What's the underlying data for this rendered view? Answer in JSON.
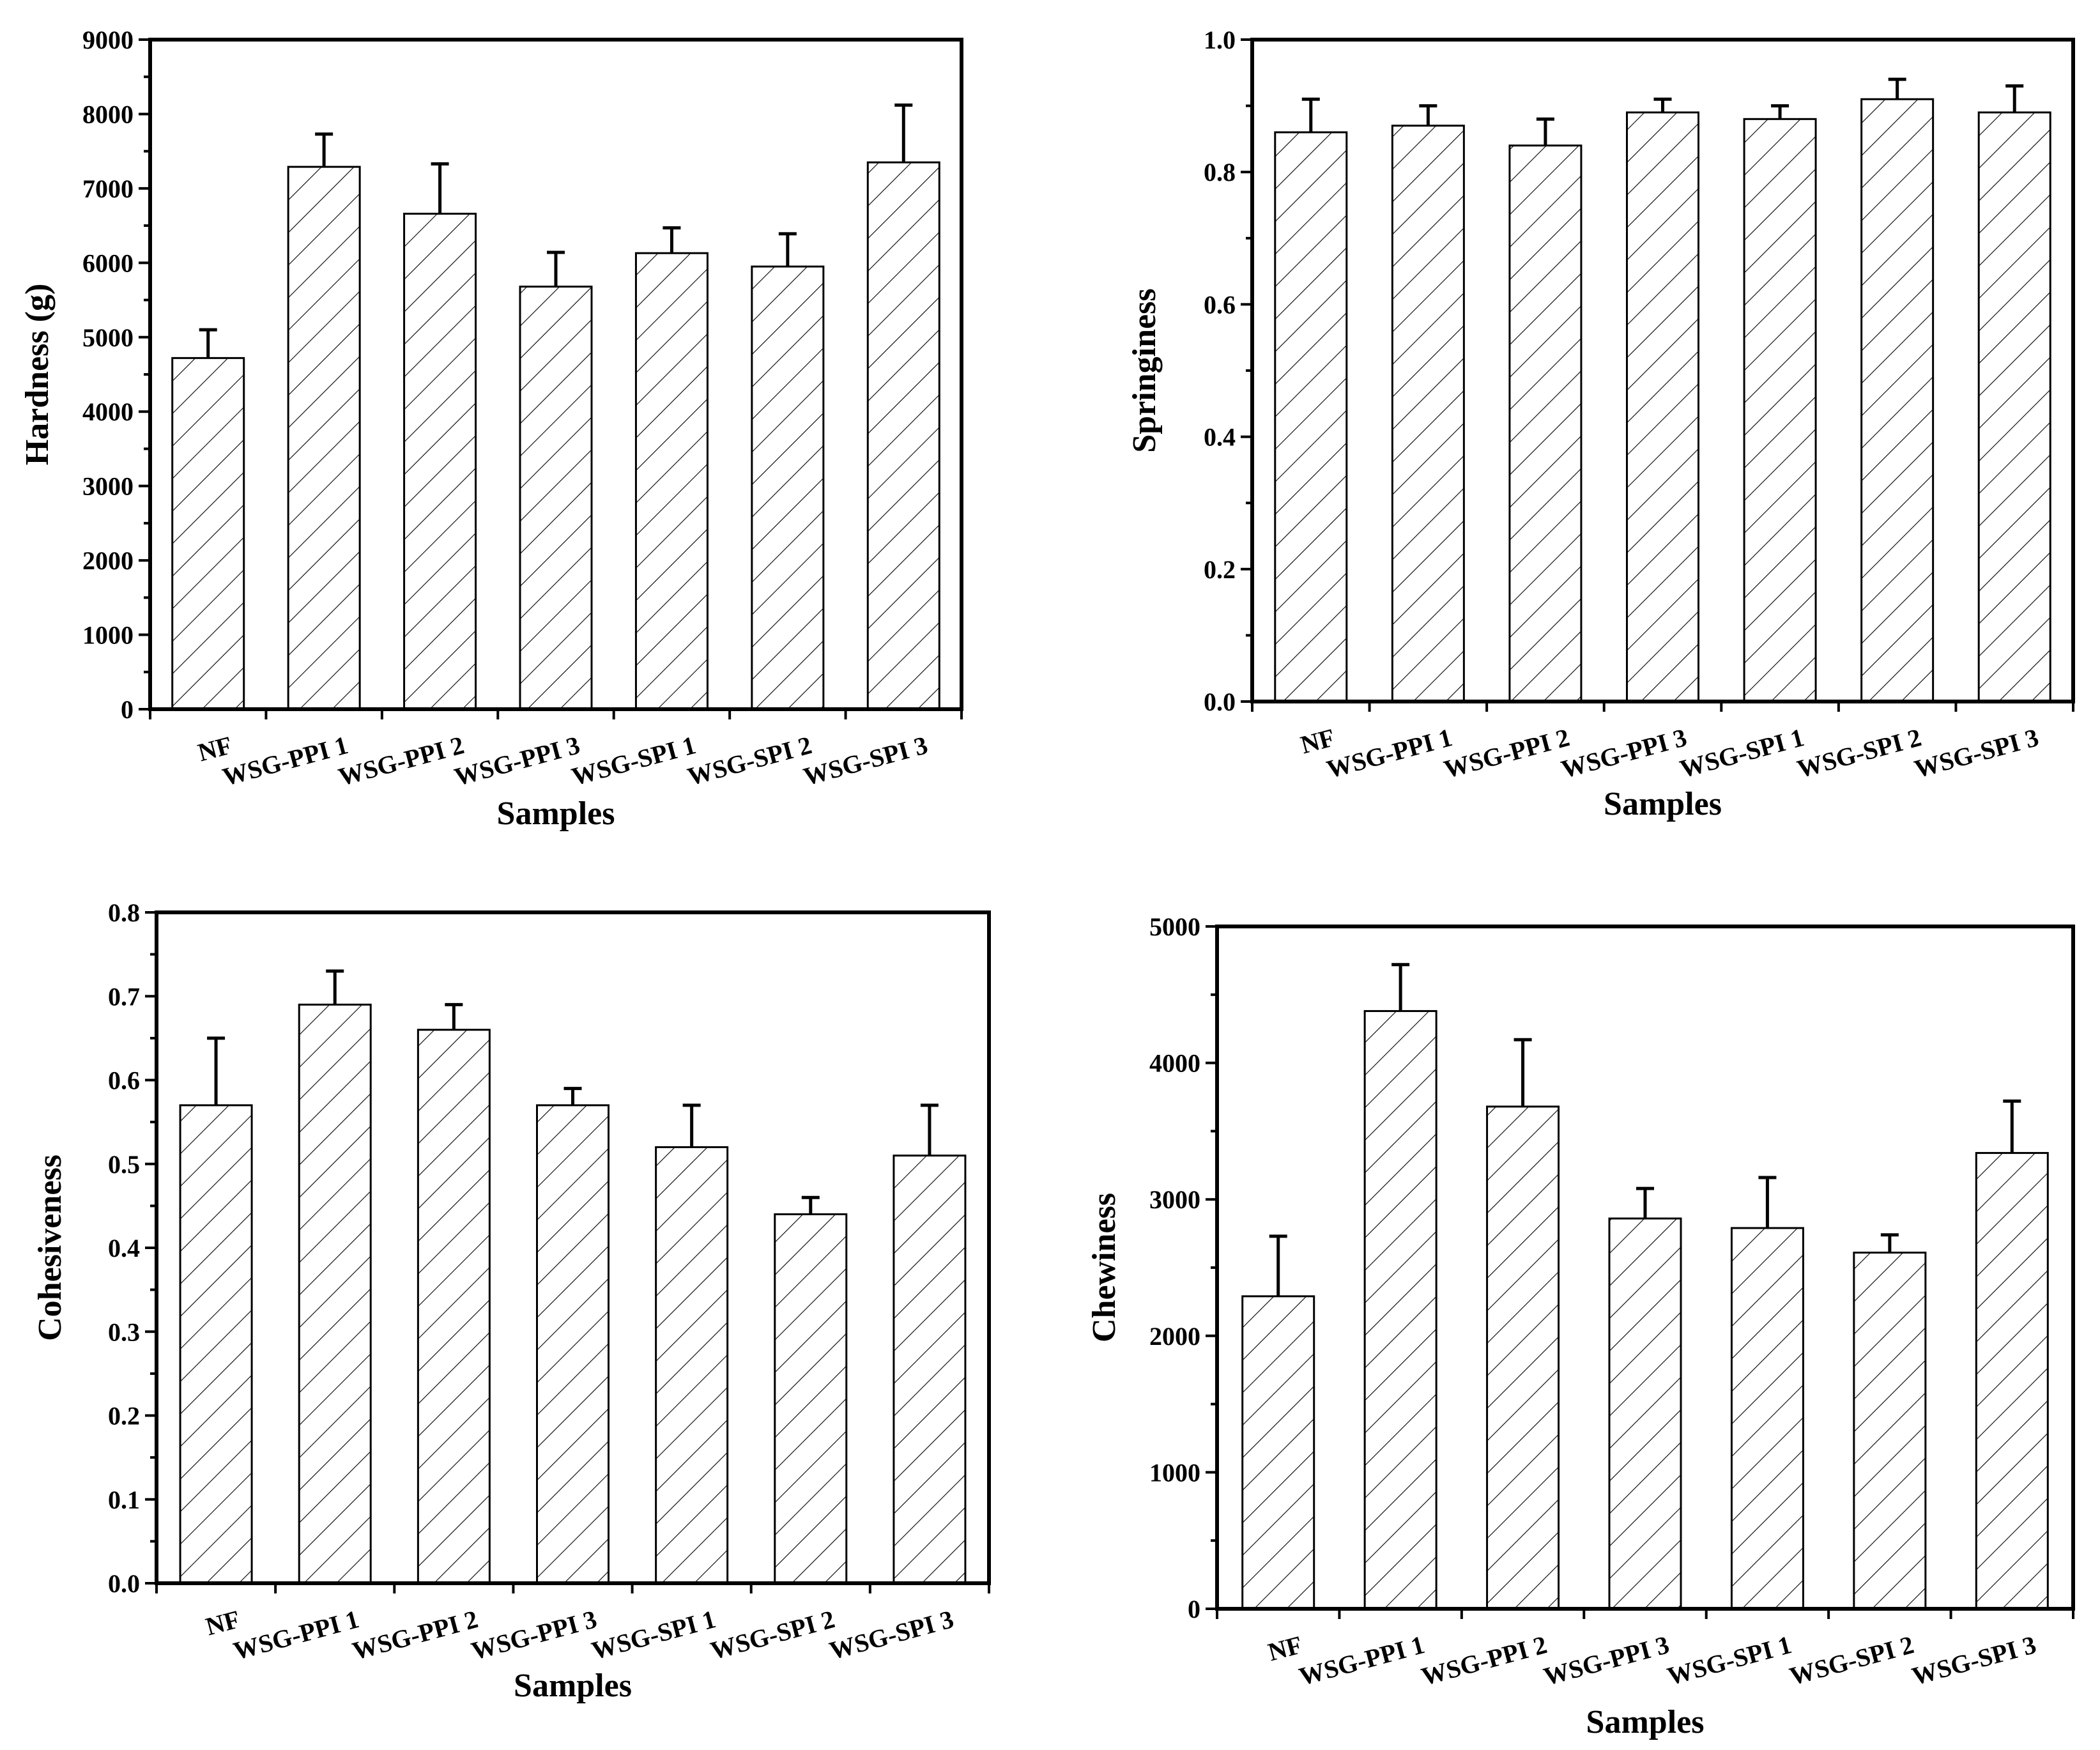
{
  "chart_data": [
    {
      "type": "bar",
      "panel": "top-left",
      "title": "",
      "xlabel": "Samples",
      "ylabel": "Hardness (g)",
      "ylim": [
        0,
        9000
      ],
      "yticks": [
        0,
        1000,
        2000,
        3000,
        4000,
        5000,
        6000,
        7000,
        8000,
        9000
      ],
      "ytick_labels": [
        "0",
        "1000",
        "2000",
        "3000",
        "4000",
        "5000",
        "6000",
        "7000",
        "8000",
        "9000"
      ],
      "categories": [
        "NF",
        "WSG-PPI 1",
        "WSG-PPI 2",
        "WSG-PPI 3",
        "WSG-SPI 1",
        "WSG-SPI 2",
        "WSG-SPI 3"
      ],
      "values": [
        4720,
        7290,
        6660,
        5680,
        6130,
        5950,
        7350
      ],
      "errors": [
        380,
        440,
        670,
        460,
        340,
        440,
        770
      ],
      "grid": false,
      "legend": "none"
    },
    {
      "type": "bar",
      "panel": "top-right",
      "title": "",
      "xlabel": "Samples",
      "ylabel": "Springiness",
      "ylim": [
        0,
        1.0
      ],
      "yticks": [
        0,
        0.2,
        0.4,
        0.6,
        0.8,
        1.0
      ],
      "ytick_labels": [
        "0.0",
        "0.2",
        "0.4",
        "0.6",
        "0.8",
        "1.0"
      ],
      "categories": [
        "NF",
        "WSG-PPI 1",
        "WSG-PPI 2",
        "WSG-PPI 3",
        "WSG-SPI 1",
        "WSG-SPI 2",
        "WSG-SPI 3"
      ],
      "values": [
        0.86,
        0.87,
        0.84,
        0.89,
        0.88,
        0.91,
        0.89
      ],
      "errors": [
        0.05,
        0.03,
        0.04,
        0.02,
        0.02,
        0.03,
        0.04
      ],
      "grid": false,
      "legend": "none"
    },
    {
      "type": "bar",
      "panel": "bottom-left",
      "title": "",
      "xlabel": "Samples",
      "ylabel": "Cohesiveness",
      "ylim": [
        0,
        0.8
      ],
      "yticks": [
        0,
        0.1,
        0.2,
        0.3,
        0.4,
        0.5,
        0.6,
        0.7,
        0.8
      ],
      "ytick_labels": [
        "0.0",
        "0.1",
        "0.2",
        "0.3",
        "0.4",
        "0.5",
        "0.6",
        "0.7",
        "0.8"
      ],
      "categories": [
        "NF",
        "WSG-PPI 1",
        "WSG-PPI 2",
        "WSG-PPI 3",
        "WSG-SPI 1",
        "WSG-SPI 2",
        "WSG-SPI 3"
      ],
      "values": [
        0.57,
        0.69,
        0.66,
        0.57,
        0.52,
        0.44,
        0.51
      ],
      "errors": [
        0.08,
        0.04,
        0.03,
        0.02,
        0.05,
        0.02,
        0.06
      ],
      "grid": false,
      "legend": "none"
    },
    {
      "type": "bar",
      "panel": "bottom-right",
      "title": "",
      "xlabel": "Samples",
      "ylabel": "Chewiness",
      "ylim": [
        0,
        5000
      ],
      "yticks": [
        0,
        1000,
        2000,
        3000,
        4000,
        5000
      ],
      "ytick_labels": [
        "0",
        "1000",
        "2000",
        "3000",
        "4000",
        "5000"
      ],
      "categories": [
        "NF",
        "WSG-PPI 1",
        "WSG-PPI 2",
        "WSG-PPI 3",
        "WSG-SPI 1",
        "WSG-SPI 2",
        "WSG-SPI 3"
      ],
      "values": [
        2290,
        4380,
        3680,
        2860,
        2790,
        2610,
        3340
      ],
      "errors": [
        440,
        340,
        490,
        220,
        370,
        130,
        380
      ],
      "grid": false,
      "legend": "none"
    }
  ]
}
